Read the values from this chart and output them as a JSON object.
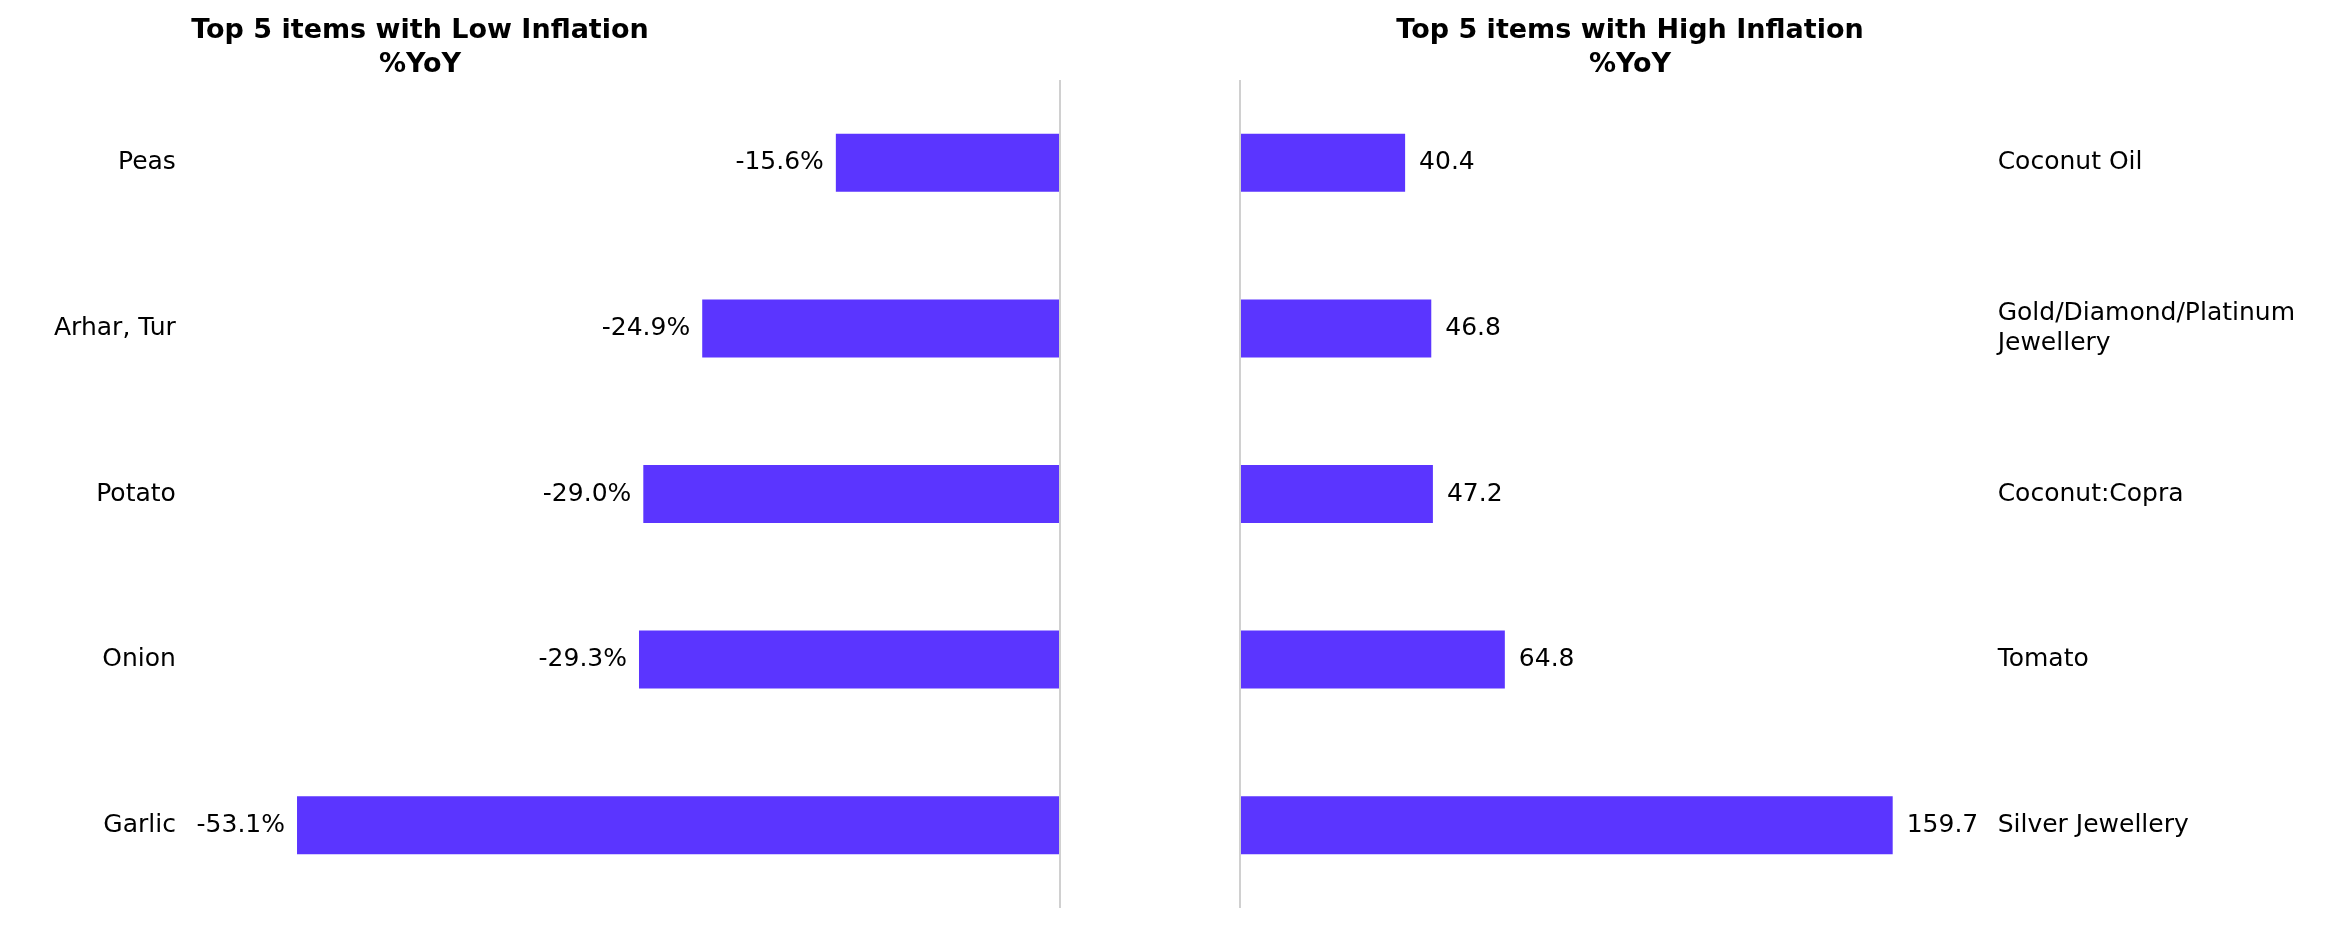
{
  "chart_data": [
    {
      "type": "bar",
      "orientation": "horizontal",
      "title": "Top 5 items with Low Inflation\n%YoY",
      "categories": [
        "Peas",
        "Arhar, Tur",
        "Potato",
        "Onion",
        "Garlic"
      ],
      "values": [
        -15.6,
        -24.9,
        -29.0,
        -29.3,
        -53.1
      ],
      "value_labels": [
        "-15.6%",
        "-24.9%",
        "-29.0%",
        "-29.3%",
        "-53.1%"
      ],
      "color": "#5b35ff",
      "tick_labels": "y",
      "legend": false
    },
    {
      "type": "bar",
      "orientation": "horizontal",
      "title": "Top 5 items with High Inflation\n%YoY",
      "categories": [
        "Coconut Oil",
        "Gold/Diamond/Platinum Jewellery",
        "Coconut:Copra",
        "Tomato",
        "Silver Jewellery"
      ],
      "values": [
        40.4,
        46.8,
        47.2,
        64.8,
        159.7
      ],
      "data_labels": true,
      "color": "#5b35ff",
      "tick_labels": "y",
      "legend": false
    }
  ]
}
